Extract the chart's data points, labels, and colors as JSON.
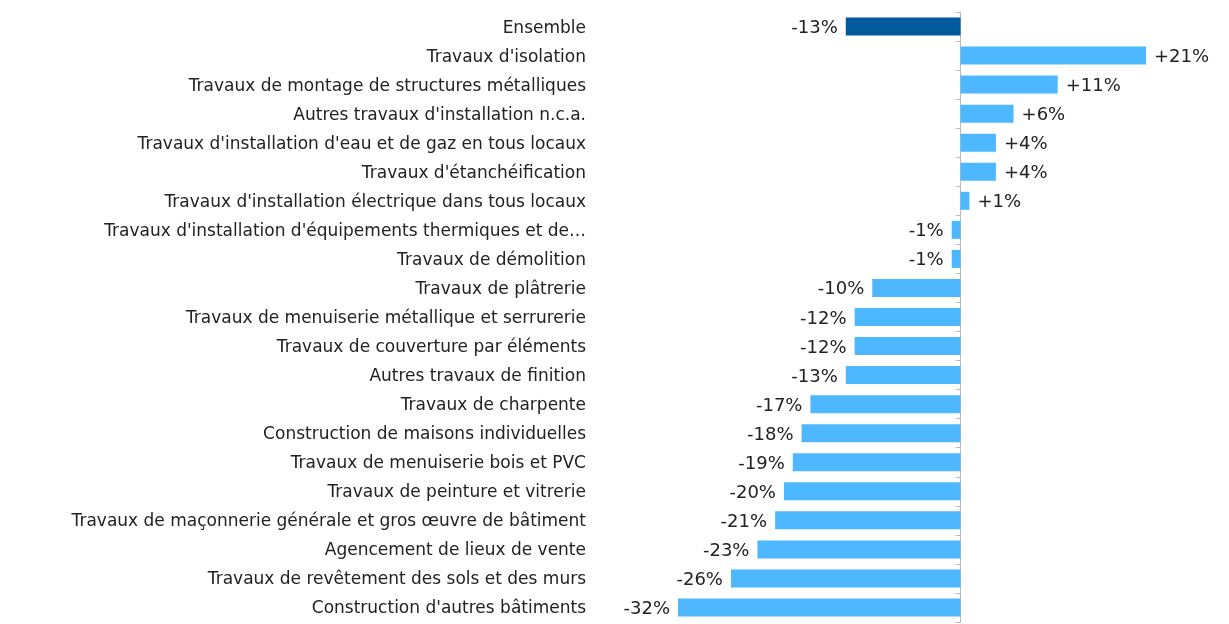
{
  "chart_data": {
    "type": "bar",
    "orientation": "horizontal",
    "categories": [
      "Ensemble",
      "Travaux d'isolation",
      "Travaux de montage de structures métalliques",
      "Autres travaux d'installation n.c.a.",
      "Travaux d'installation d'eau et de gaz en tous locaux",
      "Travaux d'étanchéification",
      "Travaux d'installation électrique dans tous locaux",
      "Travaux d'installation d'équipements thermiques et de…",
      "Travaux de démolition",
      "Travaux de plâtrerie",
      "Travaux de menuiserie métallique et serrurerie",
      "Travaux de couverture par éléments",
      "Autres travaux de finition",
      "Travaux de charpente",
      "Construction de maisons individuelles",
      "Travaux de menuiserie bois et PVC",
      "Travaux de peinture et vitrerie",
      "Travaux de maçonnerie générale et gros œuvre de bâtiment",
      "Agencement de lieux de vente",
      "Travaux de revêtement des sols et des murs",
      "Construction d'autres bâtiments"
    ],
    "values": [
      -13,
      21,
      11,
      6,
      4,
      4,
      1,
      -1,
      -1,
      -10,
      -12,
      -12,
      -13,
      -17,
      -18,
      -19,
      -20,
      -21,
      -23,
      -26,
      -32
    ],
    "colors": [
      "#005a9c",
      "#4db8ff",
      "#4db8ff",
      "#4db8ff",
      "#4db8ff",
      "#4db8ff",
      "#4db8ff",
      "#4db8ff",
      "#4db8ff",
      "#4db8ff",
      "#4db8ff",
      "#4db8ff",
      "#4db8ff",
      "#4db8ff",
      "#4db8ff",
      "#4db8ff",
      "#4db8ff",
      "#4db8ff",
      "#4db8ff",
      "#4db8ff",
      "#4db8ff"
    ],
    "value_labels": [
      "-13%",
      "+21%",
      "+11%",
      "+6%",
      "+4%",
      "+4%",
      "+1%",
      "-1%",
      "-1%",
      "-10%",
      "-12%",
      "-12%",
      "-13%",
      "-17%",
      "-18%",
      "-19%",
      "-20%",
      "-21%",
      "-23%",
      "-26%",
      "-32%"
    ]
  }
}
